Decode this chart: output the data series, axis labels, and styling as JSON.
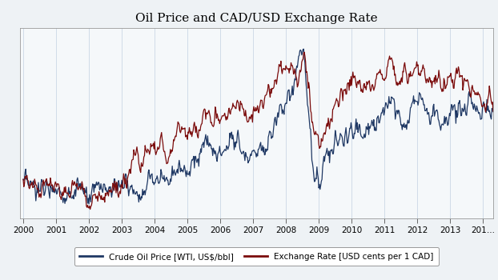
{
  "title": "Oil Price and CAD/USD Exchange Rate",
  "oil_color": "#1f3864",
  "fx_color": "#7b0c0c",
  "background_color": "#eef2f5",
  "plot_bg_color": "#f5f8fa",
  "grid_color": "#d0dce8",
  "legend_label_oil": "Crude Oil Price [WTI, US$/bbl]",
  "legend_label_fx": "Exchange Rate [USD cents per 1 CAD]",
  "xlim_start": 1999.9,
  "xlim_end": 2014.3,
  "x_ticks": [
    2000,
    2001,
    2002,
    2003,
    2004,
    2005,
    2006,
    2007,
    2008,
    2009,
    2010,
    2011,
    2012,
    2013,
    2014
  ],
  "x_tick_labels": [
    "2000",
    "2001",
    "2002",
    "2003",
    "2004",
    "2005",
    "2006",
    "2007",
    "2008",
    "2009",
    "2010",
    "2011",
    "2012",
    "2013",
    "201…"
  ]
}
